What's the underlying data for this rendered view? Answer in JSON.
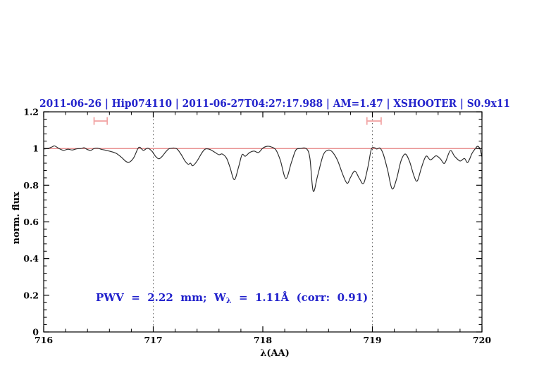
{
  "title": {
    "text": "2011-06-26 | Hip074110 | 2011-06-27T04:27:17.988 | AM=1.47 | XSHOOTER | S0.9x11",
    "date": "2011-06-26",
    "target": "Hip074110",
    "obs_timestamp": "2011-06-27T04:27:17.988",
    "airmass": "AM=1.47",
    "instrument": "XSHOOTER",
    "slit": "S0.9x11"
  },
  "annotation": {
    "pre": "PWV  =  2.22  mm;  W",
    "sub": "λ",
    "post": "  =  1.11Å  (corr:  0.91)",
    "pwv_mm": 2.22,
    "w_lambda_angstrom": 1.11,
    "corr": 0.91
  },
  "colors": {
    "accent_blue": "#2222cc",
    "continuum_red": "#e06c6c",
    "band_marker_pink": "#f2a6a6",
    "dotted_gray": "#555555",
    "spectrum_black": "#2a2a2a",
    "frame_black": "#000000"
  },
  "axes": {
    "xlabel": "λ(AA)",
    "ylabel": "norm. flux",
    "x_ticks": {
      "labels": [
        "716",
        "717",
        "718",
        "719",
        "720"
      ],
      "values": [
        716,
        717,
        718,
        719,
        720
      ],
      "minor_step": 0.2
    },
    "y_ticks": {
      "labels": [
        "0",
        "0.2",
        "0.4",
        "0.6",
        "0.8",
        "1",
        "1.2"
      ],
      "values": [
        0,
        0.2,
        0.4,
        0.6,
        0.8,
        1,
        1.2
      ],
      "minor_step": 0.04
    }
  },
  "chart_data": {
    "type": "line",
    "title": "2011-06-26 | Hip074110 | 2011-06-27T04:27:17.988 | AM=1.47 | XSHOOTER | S0.9x11",
    "xlabel": "λ(AA)",
    "ylabel": "norm. flux",
    "xlim": [
      716,
      720
    ],
    "ylim": [
      0,
      1.2
    ],
    "grid": false,
    "reference_lines": {
      "horizontal_flux": 1.0,
      "vertical_dotted_x": [
        717,
        719
      ]
    },
    "band_markers": {
      "flux_level": 1.15,
      "ranges": [
        [
          716.46,
          716.58
        ],
        [
          718.95,
          719.08
        ]
      ]
    },
    "series": [
      {
        "name": "normalized spectrum",
        "points": [
          [
            716.0,
            0.998
          ],
          [
            716.04,
            1.0
          ],
          [
            716.08,
            1.01
          ],
          [
            716.1,
            1.014
          ],
          [
            716.14,
            1.0
          ],
          [
            716.18,
            0.99
          ],
          [
            716.22,
            0.996
          ],
          [
            716.26,
            0.992
          ],
          [
            716.3,
            0.998
          ],
          [
            716.34,
            1.0
          ],
          [
            716.37,
            1.004
          ],
          [
            716.4,
            0.994
          ],
          [
            716.43,
            0.99
          ],
          [
            716.46,
            1.0
          ],
          [
            716.49,
            1.002
          ],
          [
            716.53,
            0.995
          ],
          [
            716.57,
            0.99
          ],
          [
            716.61,
            0.984
          ],
          [
            716.66,
            0.974
          ],
          [
            716.71,
            0.952
          ],
          [
            716.75,
            0.93
          ],
          [
            716.78,
            0.925
          ],
          [
            716.82,
            0.948
          ],
          [
            716.86,
            1.0
          ],
          [
            716.88,
            1.006
          ],
          [
            716.91,
            0.99
          ],
          [
            716.95,
            1.002
          ],
          [
            716.99,
            0.984
          ],
          [
            717.02,
            0.958
          ],
          [
            717.05,
            0.944
          ],
          [
            717.08,
            0.956
          ],
          [
            717.12,
            0.986
          ],
          [
            717.15,
            1.0
          ],
          [
            717.21,
            1.0
          ],
          [
            717.25,
            0.972
          ],
          [
            717.29,
            0.932
          ],
          [
            717.32,
            0.914
          ],
          [
            717.34,
            0.92
          ],
          [
            717.36,
            0.906
          ],
          [
            717.4,
            0.932
          ],
          [
            717.45,
            0.982
          ],
          [
            717.48,
            0.998
          ],
          [
            717.52,
            0.994
          ],
          [
            717.56,
            0.98
          ],
          [
            717.6,
            0.966
          ],
          [
            717.63,
            0.97
          ],
          [
            717.67,
            0.946
          ],
          [
            717.7,
            0.898
          ],
          [
            717.74,
            0.83
          ],
          [
            717.78,
            0.902
          ],
          [
            717.81,
            0.966
          ],
          [
            717.84,
            0.958
          ],
          [
            717.88,
            0.978
          ],
          [
            717.92,
            0.986
          ],
          [
            717.96,
            0.978
          ],
          [
            718.0,
            1.002
          ],
          [
            718.04,
            1.012
          ],
          [
            718.08,
            1.008
          ],
          [
            718.12,
            0.992
          ],
          [
            718.16,
            0.936
          ],
          [
            718.21,
            0.836
          ],
          [
            718.26,
            0.922
          ],
          [
            718.3,
            0.99
          ],
          [
            718.34,
            1.0
          ],
          [
            718.4,
            0.998
          ],
          [
            718.43,
            0.945
          ],
          [
            718.46,
            0.768
          ],
          [
            718.5,
            0.852
          ],
          [
            718.55,
            0.962
          ],
          [
            718.59,
            0.99
          ],
          [
            718.63,
            0.984
          ],
          [
            718.68,
            0.938
          ],
          [
            718.73,
            0.858
          ],
          [
            718.77,
            0.81
          ],
          [
            718.8,
            0.842
          ],
          [
            718.84,
            0.877
          ],
          [
            718.88,
            0.838
          ],
          [
            718.92,
            0.81
          ],
          [
            718.96,
            0.902
          ],
          [
            718.99,
            0.995
          ],
          [
            719.02,
            1.004
          ],
          [
            719.04,
            0.997
          ],
          [
            719.07,
            1.002
          ],
          [
            719.1,
            0.968
          ],
          [
            719.14,
            0.88
          ],
          [
            719.18,
            0.78
          ],
          [
            719.22,
            0.832
          ],
          [
            719.26,
            0.93
          ],
          [
            719.3,
            0.97
          ],
          [
            719.34,
            0.928
          ],
          [
            719.38,
            0.85
          ],
          [
            719.41,
            0.824
          ],
          [
            719.45,
            0.9
          ],
          [
            719.49,
            0.958
          ],
          [
            719.53,
            0.938
          ],
          [
            719.58,
            0.96
          ],
          [
            719.62,
            0.944
          ],
          [
            719.66,
            0.92
          ],
          [
            719.71,
            0.988
          ],
          [
            719.75,
            0.958
          ],
          [
            719.8,
            0.932
          ],
          [
            719.84,
            0.946
          ],
          [
            719.87,
            0.924
          ],
          [
            719.91,
            0.974
          ],
          [
            719.94,
            1.0
          ],
          [
            719.96,
            1.012
          ],
          [
            719.98,
            1.0
          ],
          [
            720.0,
            0.955
          ]
        ]
      }
    ]
  }
}
